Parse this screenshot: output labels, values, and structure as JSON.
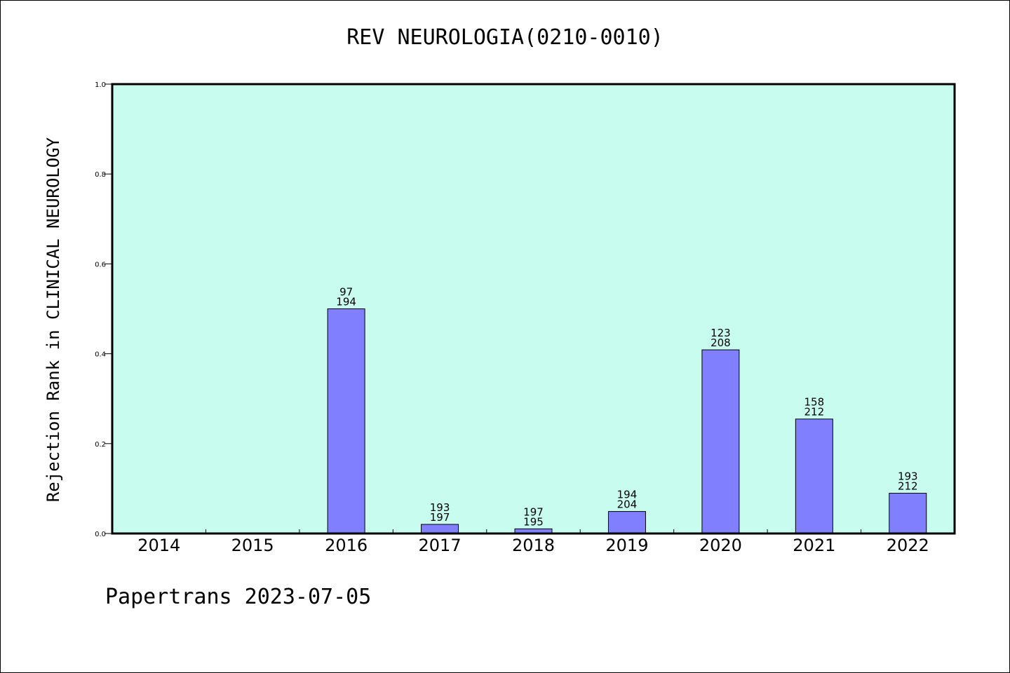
{
  "chart_data": {
    "type": "bar",
    "title": "REV NEUROLOGIA(0210-0010)",
    "ylabel": "Rejection Rank in CLINICAL NEUROLOGY",
    "xlabel": "",
    "categories": [
      "2014",
      "2015",
      "2016",
      "2017",
      "2018",
      "2019",
      "2020",
      "2021",
      "2022"
    ],
    "values": [
      null,
      null,
      0.5,
      0.0203,
      0.0103,
      0.049,
      0.4087,
      0.2547,
      0.0896
    ],
    "bar_labels": [
      null,
      null,
      [
        "97",
        "194"
      ],
      [
        "193",
        "197"
      ],
      [
        "197",
        "195"
      ],
      [
        "194",
        "204"
      ],
      [
        "123",
        "208"
      ],
      [
        "158",
        "212"
      ],
      [
        "193",
        "212"
      ]
    ],
    "ylim": [
      0.0,
      1.0
    ],
    "yticks": [
      "0.0",
      "0.2",
      "0.4",
      "0.6",
      "0.8",
      "1.0"
    ],
    "grid": false,
    "colors": {
      "plot_background": "#c8fcee",
      "bar_fill": "#8080ff",
      "bar_edge": "#000000"
    }
  },
  "footer": "Papertrans 2023-07-05"
}
